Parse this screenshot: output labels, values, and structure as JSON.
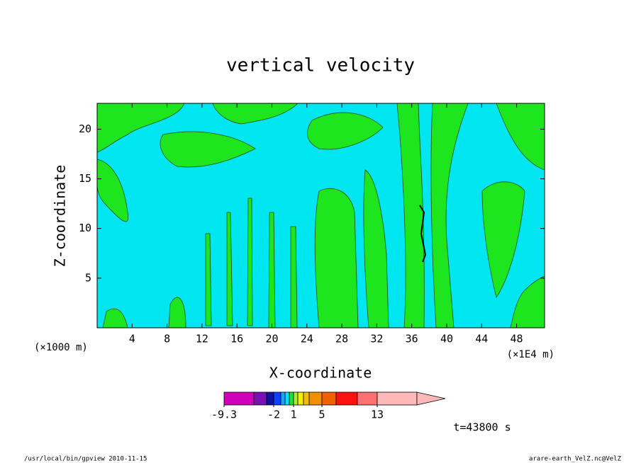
{
  "chart_data": {
    "type": "contour",
    "title": "vertical velocity",
    "x_label": "X-coordinate",
    "y_label": "Z-coordinate",
    "x_unit_left": "(×1000 m)",
    "x_unit_right": "(×1E4 m)",
    "xlim": [
      0,
      51.2
    ],
    "xticks": [
      4,
      8,
      12,
      16,
      20,
      24,
      28,
      32,
      36,
      40,
      44,
      48
    ],
    "ylim": [
      0,
      22.6
    ],
    "yticks": [
      5,
      10,
      15,
      20
    ],
    "colorbar": {
      "colors": [
        "#d000b8",
        "#7a10b0",
        "#1010a0",
        "#1040ff",
        "#20a0ff",
        "#00e0ff",
        "#20e040",
        "#a0f030",
        "#f0f000",
        "#f0c000",
        "#f09000",
        "#f06000",
        "#ff1010",
        "#ff7070",
        "#ffb8b8"
      ],
      "levels": [
        -9.3,
        null,
        null,
        -2,
        null,
        null,
        null,
        1,
        null,
        null,
        null,
        5,
        null,
        null,
        13,
        null
      ]
    },
    "time_label": "t=43800 s",
    "footer_left": "/usr/local/bin/gpview   2010-11-15",
    "footer_right": "arare-earth_VelZ.nc@VelZ"
  }
}
